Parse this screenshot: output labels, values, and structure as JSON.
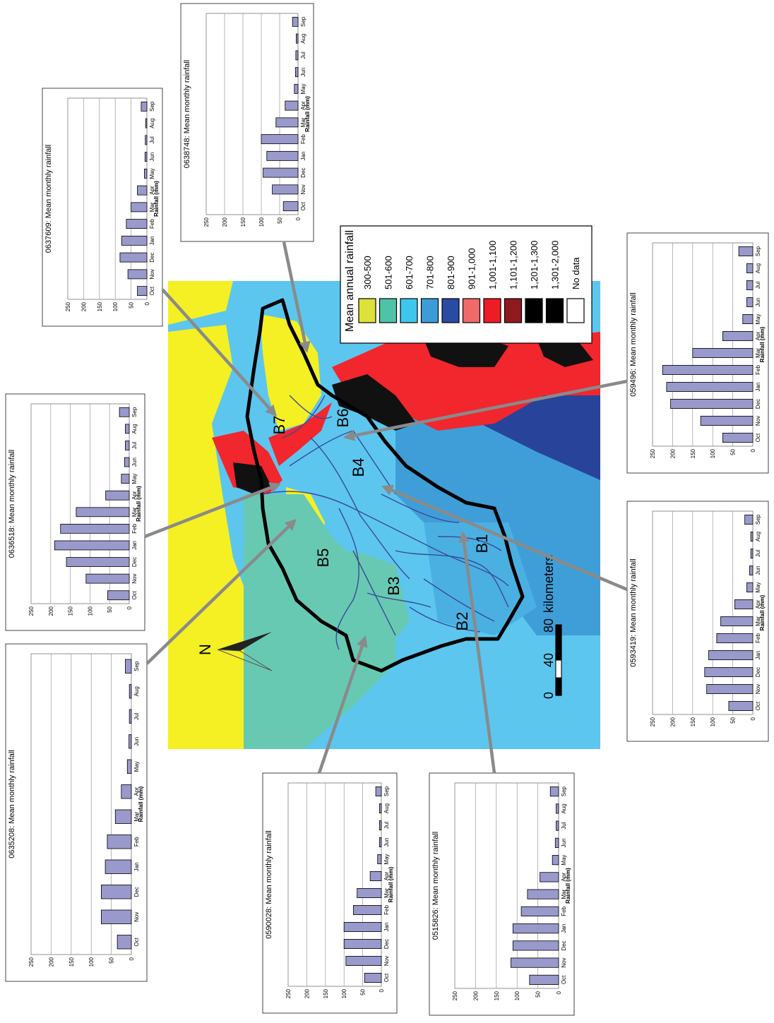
{
  "map": {
    "north_label": "N",
    "scale": {
      "ticks": [
        "0",
        "40",
        "80"
      ],
      "unit": "kilometers"
    },
    "basins": [
      "B1",
      "B2",
      "B3",
      "B4",
      "B5",
      "B6",
      "B7"
    ],
    "colors": {
      "background": "#5cc6ef",
      "yellow": "#f4f023",
      "teal": "#68c9b2",
      "mid_blue": "#3f9ed8",
      "dark_blue": "#27449a",
      "red": "#f2262d",
      "black": "#111111",
      "boundary": "#000000",
      "rivers": "#3a4a9a",
      "arrow": "#8a8a8a"
    }
  },
  "legend": {
    "title": "Mean annual rainfall",
    "items": [
      {
        "label": "300-500",
        "color": "#dde23a"
      },
      {
        "label": "501-600",
        "color": "#4fc3a7"
      },
      {
        "label": "601-700",
        "color": "#3ec7ec"
      },
      {
        "label": "701-800",
        "color": "#3d9cd7"
      },
      {
        "label": "801-900",
        "color": "#2a4ba3"
      },
      {
        "label": "901-1,000",
        "color": "#f06a6a"
      },
      {
        "label": "1,001-1,100",
        "color": "#ee1c24"
      },
      {
        "label": "1,101-1,200",
        "color": "#8f1a1e"
      },
      {
        "label": "1,201-1,300",
        "color": "#000000"
      },
      {
        "label": "1,301-2,000",
        "color": "#000000"
      },
      {
        "label": "No data",
        "color": "#ffffff"
      }
    ]
  },
  "chart_data": [
    {
      "type": "bar",
      "title": "0637609: Mean monthly rainfall",
      "categories": [
        "Oct",
        "Nov",
        "Dec",
        "Jan",
        "Feb",
        "Mar",
        "Apr",
        "May",
        "Jun",
        "Jul",
        "Aug",
        "Sep"
      ],
      "values": [
        30,
        60,
        85,
        80,
        65,
        50,
        30,
        8,
        6,
        5,
        4,
        18
      ],
      "ylabel": "Rainfall (mm)",
      "ylim": [
        0,
        250
      ],
      "yticks": [
        "0",
        "50",
        "100",
        "150",
        "200",
        "250"
      ],
      "grid": true,
      "bar_color": "#9999cc"
    },
    {
      "type": "bar",
      "title": "0638748: Mean monthly rainfall",
      "categories": [
        "Oct",
        "Nov",
        "Dec",
        "Jan",
        "Feb",
        "Mar",
        "Apr",
        "May",
        "Jun",
        "Jul",
        "Aug",
        "Sep"
      ],
      "values": [
        40,
        70,
        95,
        85,
        100,
        60,
        35,
        10,
        7,
        6,
        5,
        15
      ],
      "ylabel": "Rainfall (mm)",
      "ylim": [
        0,
        250
      ],
      "yticks": [
        "0",
        "50",
        "100",
        "150",
        "200",
        "250"
      ],
      "grid": true,
      "bar_color": "#9999cc"
    },
    {
      "type": "bar",
      "title": "0636518: Mean monthly rainfall",
      "categories": [
        "Oct",
        "Nov",
        "Dec",
        "Jan",
        "Feb",
        "Mar",
        "Apr",
        "May",
        "Jun",
        "Jul",
        "Aug",
        "Sep"
      ],
      "values": [
        55,
        110,
        160,
        190,
        175,
        135,
        60,
        20,
        12,
        10,
        10,
        25
      ],
      "ylabel": "Rainfall (mm)",
      "ylim": [
        0,
        250
      ],
      "yticks": [
        "0",
        "50",
        "100",
        "150",
        "200",
        "250"
      ],
      "grid": true,
      "bar_color": "#9999cc"
    },
    {
      "type": "bar",
      "title": "0635208: Mean monthly rainfall",
      "categories": [
        "Oct",
        "Nov",
        "Dec",
        "Jan",
        "Feb",
        "Mar",
        "Apr",
        "May",
        "Jun",
        "Jul",
        "Aug",
        "Sep"
      ],
      "values": [
        35,
        75,
        75,
        65,
        60,
        40,
        25,
        10,
        6,
        5,
        5,
        15
      ],
      "ylabel": "Rainfall (mm)",
      "ylim": [
        0,
        250
      ],
      "yticks": [
        "0",
        "50",
        "100",
        "150",
        "200",
        "250"
      ],
      "grid": true,
      "bar_color": "#9999cc"
    },
    {
      "type": "bar",
      "title": "059496: Mean monthly rainfall",
      "categories": [
        "Oct",
        "Nov",
        "Dec",
        "Jan",
        "Feb",
        "Mar",
        "Apr",
        "May",
        "Jun",
        "Jul",
        "Aug",
        "Sep"
      ],
      "values": [
        75,
        130,
        205,
        215,
        225,
        150,
        75,
        25,
        15,
        15,
        15,
        35
      ],
      "ylabel": "Rainfall (mm)",
      "ylim": [
        0,
        250
      ],
      "yticks": [
        "0",
        "50",
        "100",
        "150",
        "200",
        "250"
      ],
      "grid": true,
      "bar_color": "#9999cc"
    },
    {
      "type": "bar",
      "title": "0593419: Mean monthly rainfall",
      "categories": [
        "Oct",
        "Nov",
        "Dec",
        "Jan",
        "Feb",
        "Mar",
        "Apr",
        "May",
        "Jun",
        "Jul",
        "Aug",
        "Sep"
      ],
      "values": [
        60,
        115,
        120,
        110,
        90,
        80,
        45,
        15,
        8,
        5,
        5,
        20
      ],
      "ylabel": "Rainfall (mm)",
      "ylim": [
        0,
        250
      ],
      "yticks": [
        "0",
        "50",
        "100",
        "150",
        "200",
        "250"
      ],
      "grid": true,
      "bar_color": "#9999cc"
    },
    {
      "type": "bar",
      "title": "0590028: Mean monthly rainfall",
      "categories": [
        "Oct",
        "Nov",
        "Dec",
        "Jan",
        "Feb",
        "Mar",
        "Apr",
        "May",
        "Jun",
        "Jul",
        "Aug",
        "Sep"
      ],
      "values": [
        45,
        95,
        100,
        100,
        75,
        65,
        30,
        10,
        5,
        5,
        5,
        15
      ],
      "ylabel": "Rainfall (mm)",
      "ylim": [
        0,
        250
      ],
      "yticks": [
        "0",
        "50",
        "100",
        "150",
        "200",
        "250"
      ],
      "grid": true,
      "bar_color": "#9999cc"
    },
    {
      "type": "bar",
      "title": "0515826: Mean monthly rainfall",
      "categories": [
        "Oct",
        "Nov",
        "Dec",
        "Jan",
        "Feb",
        "Mar",
        "Apr",
        "May",
        "Jun",
        "Jul",
        "Aug",
        "Sep"
      ],
      "values": [
        70,
        115,
        110,
        110,
        90,
        75,
        45,
        15,
        8,
        6,
        6,
        20
      ],
      "ylabel": "Rainfall (mm)",
      "ylim": [
        0,
        250
      ],
      "yticks": [
        "0",
        "50",
        "100",
        "150",
        "200",
        "250"
      ],
      "grid": true,
      "bar_color": "#9999cc"
    }
  ]
}
